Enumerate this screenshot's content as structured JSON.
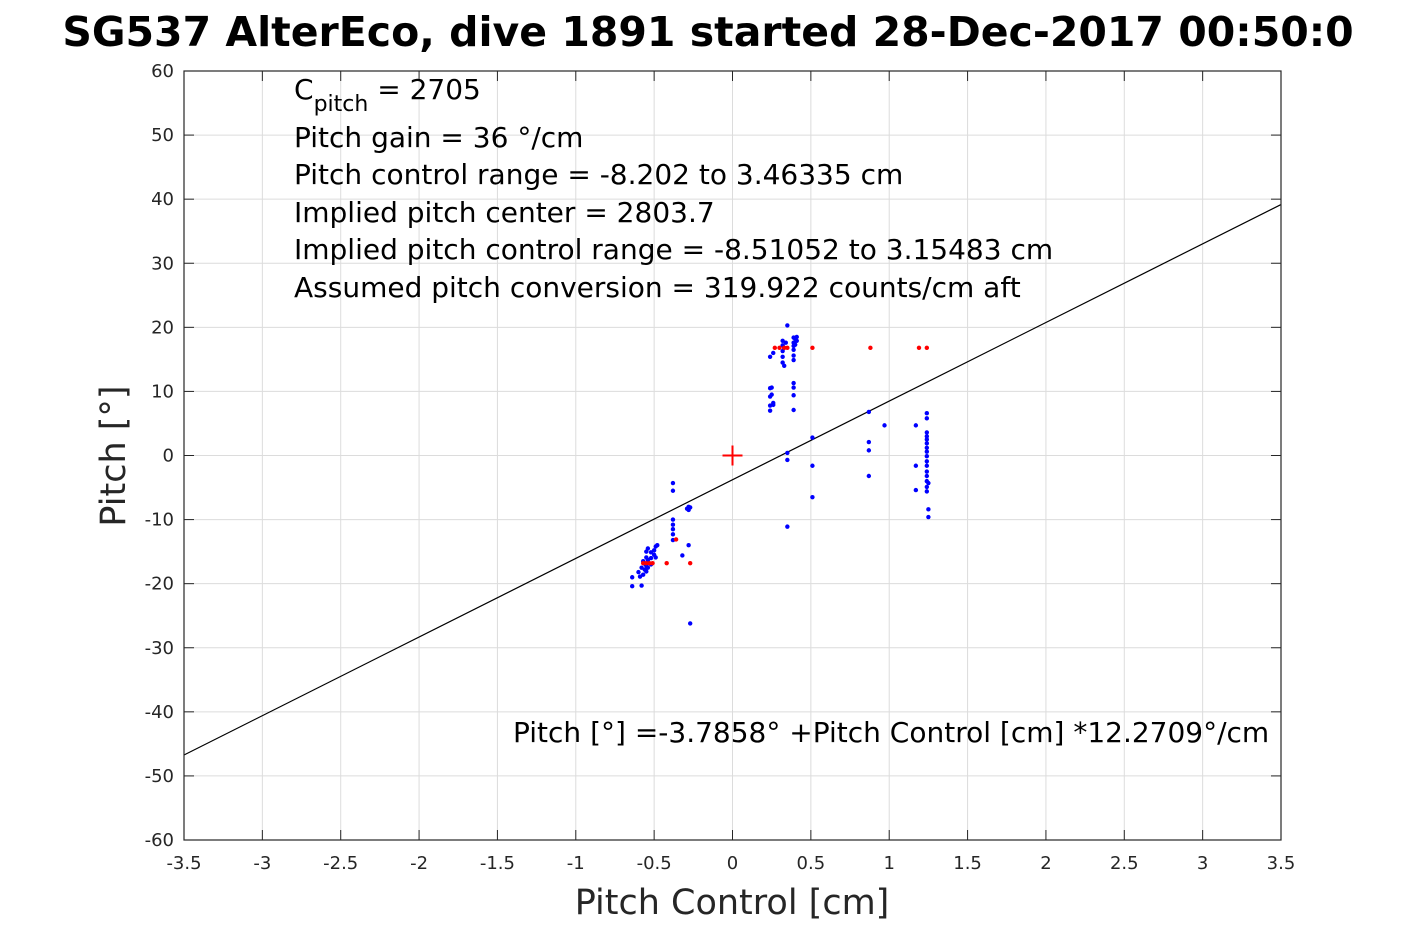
{
  "chart_data": {
    "type": "scatter",
    "title": "SG537 AlterEco, dive 1891 started 28-Dec-2017 00:50:0",
    "xlabel": "Pitch Control [cm]",
    "ylabel": "Pitch [°]",
    "xlim": [
      -3.5,
      3.5
    ],
    "ylim": [
      -60,
      60
    ],
    "xticks": [
      -3.5,
      -3,
      -2.5,
      -2,
      -1.5,
      -1,
      -0.5,
      0,
      0.5,
      1,
      1.5,
      2,
      2.5,
      3,
      3.5
    ],
    "xtick_labels": [
      "-3.5",
      "-3",
      "-2.5",
      "-2",
      "-1.5",
      "-1",
      "-0.5",
      "0",
      "0.5",
      "1",
      "1.5",
      "2",
      "2.5",
      "3",
      "3.5"
    ],
    "yticks": [
      -60,
      -50,
      -40,
      -30,
      -20,
      -10,
      0,
      10,
      20,
      30,
      40,
      50,
      60
    ],
    "ytick_labels": [
      "-60",
      "-50",
      "-40",
      "-30",
      "-20",
      "-10",
      "0",
      "10",
      "20",
      "30",
      "40",
      "50",
      "60"
    ],
    "grid": true,
    "annotations": {
      "c_pitch_main": "C",
      "c_pitch_sub": "pitch",
      "c_pitch_value": " = 2705",
      "lines": [
        "Pitch gain = 36 °/cm",
        "Pitch control range = -8.202 to 3.46335 cm",
        "Implied pitch center = 2803.7",
        "Implied pitch control range = -8.51052 to 3.15483 cm",
        "Assumed pitch conversion = 319.922 counts/cm aft"
      ],
      "fit_equation": "Pitch [°] =-3.7858° +Pitch Control [cm] *12.2709°/cm"
    },
    "fit_line": {
      "intercept": -3.7858,
      "slope": 12.2709,
      "color": "#000000"
    },
    "center_marker": {
      "x": 0,
      "y": 0,
      "color": "#ff0000"
    },
    "colors": {
      "blue": "#0000ff",
      "red": "#ff0000"
    },
    "series": [
      {
        "color": "blue",
        "points": [
          [
            -0.64,
            -19.0
          ],
          [
            -0.64,
            -20.4
          ],
          [
            -0.6,
            -18.2
          ],
          [
            -0.59,
            -18.9
          ],
          [
            -0.58,
            -17.5
          ],
          [
            -0.58,
            -20.3
          ],
          [
            -0.57,
            -16.5
          ],
          [
            -0.57,
            -18.6
          ],
          [
            -0.56,
            -16.9
          ],
          [
            -0.56,
            -17.8
          ],
          [
            -0.55,
            -15.0
          ],
          [
            -0.55,
            -15.9
          ],
          [
            -0.55,
            -17.2
          ],
          [
            -0.55,
            -18.1
          ],
          [
            -0.54,
            -14.5
          ],
          [
            -0.54,
            -16.3
          ],
          [
            -0.54,
            -17.5
          ],
          [
            -0.52,
            -15.1
          ],
          [
            -0.52,
            -16.0
          ],
          [
            -0.52,
            -17.0
          ],
          [
            -0.5,
            -14.8
          ],
          [
            -0.5,
            -15.5
          ],
          [
            -0.49,
            -14.2
          ],
          [
            -0.49,
            -15.9
          ],
          [
            -0.48,
            -14.0
          ],
          [
            -0.38,
            -4.3
          ],
          [
            -0.38,
            -5.5
          ],
          [
            -0.38,
            -10.0
          ],
          [
            -0.38,
            -10.8
          ],
          [
            -0.38,
            -11.5
          ],
          [
            -0.38,
            -12.3
          ],
          [
            -0.38,
            -13.2
          ],
          [
            -0.32,
            -15.6
          ],
          [
            -0.29,
            -8.3
          ],
          [
            -0.28,
            -8.0
          ],
          [
            -0.28,
            -8.5
          ],
          [
            -0.27,
            -8.1
          ],
          [
            -0.28,
            -14.0
          ],
          [
            -0.27,
            -26.2
          ],
          [
            0.24,
            15.4
          ],
          [
            0.24,
            10.5
          ],
          [
            0.24,
            9.2
          ],
          [
            0.24,
            7.8
          ],
          [
            0.24,
            7.0
          ],
          [
            0.25,
            10.6
          ],
          [
            0.25,
            9.5
          ],
          [
            0.26,
            8.2
          ],
          [
            0.26,
            7.9
          ],
          [
            0.26,
            16.0
          ],
          [
            0.32,
            17.9
          ],
          [
            0.32,
            17.2
          ],
          [
            0.32,
            16.3
          ],
          [
            0.32,
            15.4
          ],
          [
            0.32,
            14.5
          ],
          [
            0.33,
            14.0
          ],
          [
            0.33,
            16.8
          ],
          [
            0.34,
            17.6
          ],
          [
            0.35,
            20.3
          ],
          [
            0.35,
            0.4
          ],
          [
            0.35,
            -0.7
          ],
          [
            0.35,
            -11.1
          ],
          [
            0.39,
            18.4
          ],
          [
            0.39,
            17.6
          ],
          [
            0.39,
            17.1
          ],
          [
            0.39,
            16.5
          ],
          [
            0.39,
            15.6
          ],
          [
            0.39,
            14.9
          ],
          [
            0.39,
            11.3
          ],
          [
            0.39,
            10.6
          ],
          [
            0.39,
            9.4
          ],
          [
            0.39,
            7.1
          ],
          [
            0.4,
            18.2
          ],
          [
            0.4,
            17.3
          ],
          [
            0.41,
            18.5
          ],
          [
            0.41,
            17.9
          ],
          [
            0.51,
            2.8
          ],
          [
            0.51,
            -1.6
          ],
          [
            0.51,
            -6.5
          ],
          [
            0.87,
            6.8
          ],
          [
            0.87,
            2.1
          ],
          [
            0.87,
            0.8
          ],
          [
            0.87,
            -3.2
          ],
          [
            0.97,
            4.7
          ],
          [
            1.17,
            4.7
          ],
          [
            1.17,
            -1.6
          ],
          [
            1.17,
            -5.4
          ],
          [
            1.24,
            6.6
          ],
          [
            1.24,
            5.8
          ],
          [
            1.24,
            3.6
          ],
          [
            1.24,
            3.0
          ],
          [
            1.24,
            2.5
          ],
          [
            1.24,
            1.9
          ],
          [
            1.24,
            1.2
          ],
          [
            1.24,
            0.6
          ],
          [
            1.24,
            -0.1
          ],
          [
            1.24,
            -0.9
          ],
          [
            1.24,
            -1.6
          ],
          [
            1.24,
            -2.5
          ],
          [
            1.24,
            -3.2
          ],
          [
            1.24,
            -4.0
          ],
          [
            1.24,
            -4.9
          ],
          [
            1.24,
            -5.6
          ],
          [
            1.25,
            -4.3
          ],
          [
            1.25,
            -8.4
          ],
          [
            1.25,
            -9.6
          ]
        ]
      },
      {
        "color": "red",
        "points": [
          [
            -0.57,
            -16.8
          ],
          [
            -0.55,
            -16.8
          ],
          [
            -0.53,
            -16.8
          ],
          [
            -0.51,
            -16.8
          ],
          [
            -0.42,
            -16.8
          ],
          [
            -0.36,
            -13.1
          ],
          [
            -0.27,
            -16.8
          ],
          [
            0.27,
            16.8
          ],
          [
            0.3,
            16.8
          ],
          [
            0.33,
            16.8
          ],
          [
            0.35,
            16.8
          ],
          [
            0.51,
            16.8
          ],
          [
            0.88,
            16.8
          ],
          [
            1.19,
            16.8
          ],
          [
            1.24,
            16.8
          ]
        ]
      }
    ]
  }
}
